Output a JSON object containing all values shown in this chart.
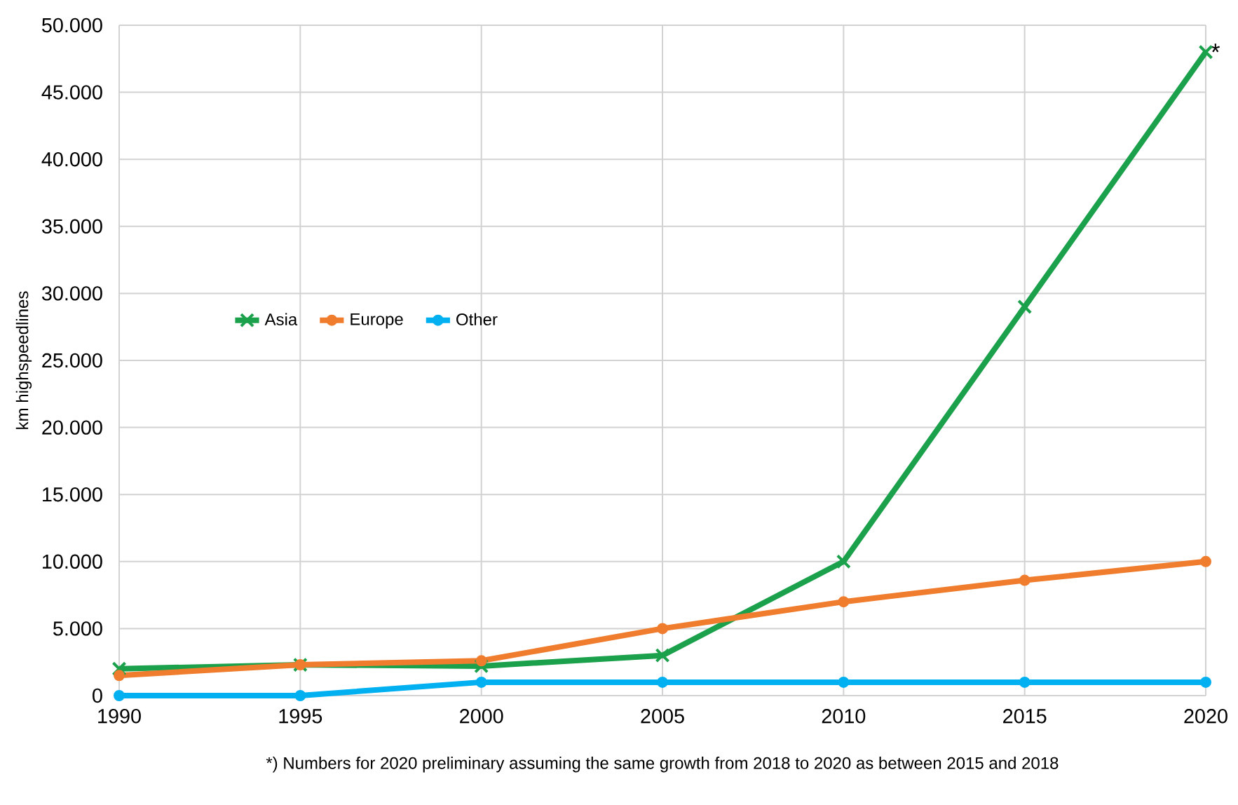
{
  "chart_data": {
    "type": "line",
    "ylabel": "km highspeedlines",
    "x": [
      1990,
      1995,
      2000,
      2005,
      2010,
      2015,
      2020
    ],
    "series": [
      {
        "name": "Asia",
        "color": "#1ba14b",
        "marker": "cross",
        "values": [
          2000,
          2300,
          2200,
          3000,
          10000,
          29000,
          48000
        ]
      },
      {
        "name": "Europe",
        "color": "#f07c2e",
        "marker": "circle",
        "values": [
          1500,
          2300,
          2600,
          5000,
          7000,
          8600,
          10000
        ]
      },
      {
        "name": "Other",
        "color": "#00b0f0",
        "marker": "circle",
        "values": [
          0,
          0,
          1000,
          1000,
          1000,
          1000,
          1000
        ]
      }
    ],
    "xlim": [
      1990,
      2020
    ],
    "xticks": [
      1990,
      1995,
      2000,
      2005,
      2010,
      2015,
      2020
    ],
    "ylim": [
      0,
      50000
    ],
    "yticks": [
      {
        "value": 0,
        "label": "0"
      },
      {
        "value": 5000,
        "label": "5.000"
      },
      {
        "value": 10000,
        "label": "10.000"
      },
      {
        "value": 15000,
        "label": "15.000"
      },
      {
        "value": 20000,
        "label": "20.000"
      },
      {
        "value": 25000,
        "label": "25.000"
      },
      {
        "value": 30000,
        "label": "30.000"
      },
      {
        "value": 35000,
        "label": "35.000"
      },
      {
        "value": 40000,
        "label": "40.000"
      },
      {
        "value": 45000,
        "label": "45.000"
      },
      {
        "value": 50000,
        "label": "50.000"
      }
    ],
    "grid": true,
    "legend": "left",
    "annotations": [
      {
        "text": "*",
        "x": 2020,
        "y": 48000
      },
      "*) Numbers for 2020 preliminary assuming the same growth from 2018 to 2020 as between 2015 and 2018"
    ]
  }
}
